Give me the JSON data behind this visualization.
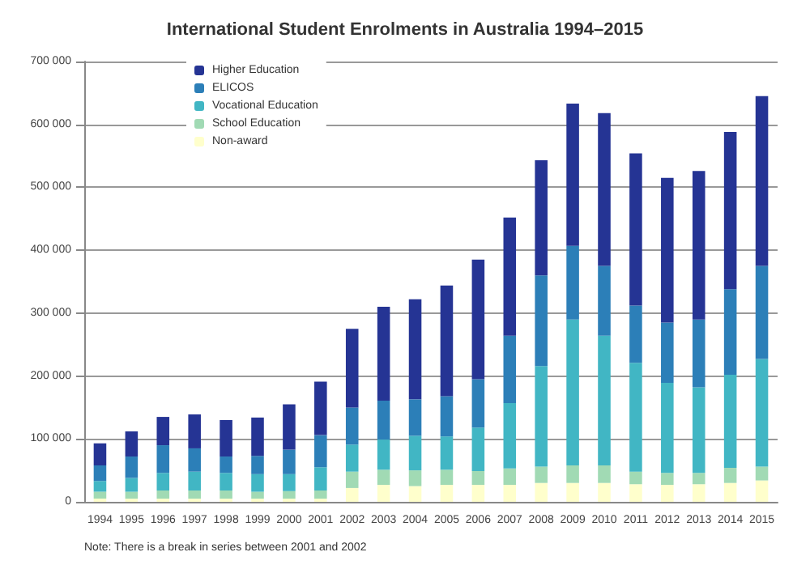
{
  "chart_data": {
    "type": "bar",
    "stacked": true,
    "title": "International Student Enrolments in Australia 1994–2015",
    "categories": [
      "1994",
      "1995",
      "1996",
      "1997",
      "1998",
      "1999",
      "2000",
      "2001",
      "2002",
      "2003",
      "2004",
      "2005",
      "2006",
      "2007",
      "2008",
      "2009",
      "2010",
      "2011",
      "2012",
      "2013",
      "2014",
      "2015"
    ],
    "series": [
      {
        "name": "Non-award",
        "color": "#ffffcc",
        "values": [
          5000,
          5000,
          5000,
          5000,
          5000,
          5000,
          5000,
          5000,
          22000,
          27000,
          25000,
          27000,
          27000,
          27000,
          30000,
          30000,
          30000,
          28000,
          27000,
          28000,
          30000,
          34000
        ]
      },
      {
        "name": "School Education",
        "color": "#a1dab4",
        "values": [
          11000,
          11000,
          13000,
          13000,
          13000,
          11000,
          12000,
          13000,
          26000,
          24000,
          25000,
          24000,
          22000,
          26000,
          26000,
          28000,
          28000,
          20000,
          19000,
          18000,
          24000,
          22000
        ]
      },
      {
        "name": "Vocational Education",
        "color": "#41b6c4",
        "values": [
          17000,
          22000,
          28000,
          30000,
          28000,
          28000,
          27000,
          37000,
          43000,
          48000,
          55000,
          53000,
          69000,
          104000,
          160000,
          232000,
          206000,
          173000,
          143000,
          136000,
          148000,
          171000
        ]
      },
      {
        "name": "ELICOS",
        "color": "#2c7fb8",
        "values": [
          25000,
          34000,
          44000,
          37000,
          26000,
          29000,
          39000,
          51000,
          59000,
          62000,
          58000,
          64000,
          77000,
          107000,
          144000,
          117000,
          111000,
          91000,
          96000,
          108000,
          136000,
          148000
        ]
      },
      {
        "name": "Higher Education",
        "color": "#253494",
        "values": [
          35000,
          40000,
          45000,
          54000,
          58000,
          61000,
          72000,
          85000,
          125000,
          149000,
          159000,
          176000,
          190000,
          188000,
          183000,
          226000,
          243000,
          242000,
          230000,
          236000,
          250000,
          270000
        ]
      }
    ],
    "ylim": [
      0,
      700000
    ],
    "yticks": [
      0,
      {
        "value": 100000,
        "label": "100 000"
      },
      {
        "value": 200000,
        "label": "200 000"
      },
      {
        "value": 300000,
        "label": "300 000"
      },
      {
        "value": 400000,
        "label": "400 000"
      },
      {
        "value": 500000,
        "label": "500 000"
      },
      {
        "value": 600000,
        "label": "600 000"
      },
      {
        "value": 700000,
        "label": "700 000"
      }
    ],
    "grid": "y",
    "legend": "top left",
    "annotations": [
      "Note: There is a break in series between 2001 and 2002"
    ]
  }
}
